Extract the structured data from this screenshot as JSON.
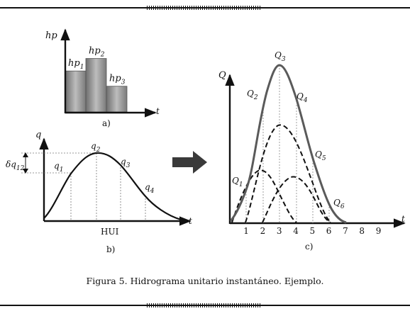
{
  "caption": "Figura 5. Hidrograma unitario instantáneo. Ejemplo.",
  "panel_a": {
    "label": "a)",
    "y_axis_label": "hp",
    "x_axis_label": "t",
    "bars": [
      {
        "label": "hp",
        "sub": "1",
        "height": 0.59
      },
      {
        "label": "hp",
        "sub": "2",
        "height": 0.77
      },
      {
        "label": "hp",
        "sub": "3",
        "height": 0.37
      }
    ]
  },
  "panel_b": {
    "label": "b)",
    "y_axis_label": "q",
    "x_axis_label": "t",
    "curve_label": "HUI",
    "delta_label": "δq",
    "delta_sub": "12",
    "points": [
      {
        "label": "q",
        "sub": "1"
      },
      {
        "label": "q",
        "sub": "2"
      },
      {
        "label": "q",
        "sub": "3"
      },
      {
        "label": "q",
        "sub": "4"
      }
    ]
  },
  "panel_c": {
    "label": "c)",
    "y_axis_label": "Q",
    "x_axis_label": "t",
    "x_ticks": [
      "1",
      "2",
      "3",
      "4",
      "5",
      "6",
      "7",
      "8",
      "9"
    ],
    "points": [
      {
        "label": "Q",
        "sub": "1"
      },
      {
        "label": "Q",
        "sub": "2"
      },
      {
        "label": "Q",
        "sub": "3"
      },
      {
        "label": "Q",
        "sub": "4"
      },
      {
        "label": "Q",
        "sub": "5"
      },
      {
        "label": "Q",
        "sub": "6"
      }
    ]
  },
  "colors": {
    "ink": "#111111",
    "curve": "#5a5a5a",
    "arrow": "#3a3a3a",
    "bar_dark": "#6e6e6e",
    "bar_light": "#bdbdbd"
  }
}
